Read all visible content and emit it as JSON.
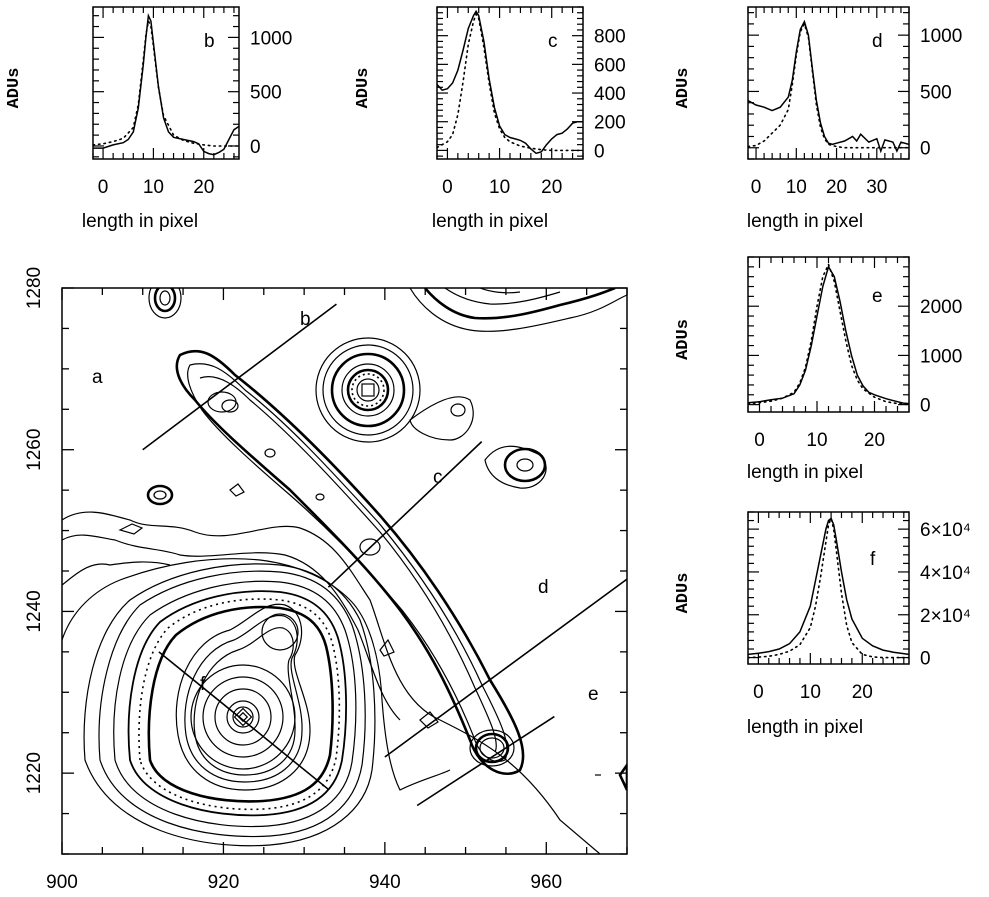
{
  "chart_data": [
    {
      "id": "a",
      "type": "contour",
      "panel_label": "a",
      "xlim": [
        900,
        970
      ],
      "ylim": [
        1210,
        1280
      ],
      "xticks": [
        900,
        920,
        940,
        960
      ],
      "yticks": [
        1220,
        1240,
        1260,
        1280
      ],
      "cuts": [
        {
          "label": "b",
          "from": [
            910,
            1260
          ],
          "to": [
            934,
            1278
          ]
        },
        {
          "label": "c",
          "from": [
            933,
            1243
          ],
          "to": [
            952,
            1261
          ]
        },
        {
          "label": "d",
          "from": [
            940,
            1222
          ],
          "to": [
            970,
            1244
          ]
        },
        {
          "label": "e",
          "from": [
            944,
            1216
          ],
          "to": [
            961,
            1227
          ]
        },
        {
          "label": "f",
          "from": [
            912,
            1235
          ],
          "to": [
            933,
            1218
          ]
        }
      ]
    },
    {
      "id": "b",
      "type": "line",
      "panel_label": "b",
      "xlabel": "length in pixel",
      "ylabel": "ADUs",
      "xlim": [
        -2,
        27
      ],
      "ylim": [
        -120,
        1280
      ],
      "xticks": [
        0,
        10,
        20
      ],
      "yticks": [
        0,
        500,
        1000
      ],
      "series": [
        {
          "style": "solid",
          "x": [
            -2,
            0,
            2,
            4,
            5,
            6,
            7,
            8,
            8.5,
            9,
            9.5,
            10,
            11,
            12,
            13,
            14,
            16,
            18,
            19,
            20,
            21,
            22,
            23,
            24,
            25,
            26,
            27
          ],
          "y": [
            -20,
            -20,
            10,
            30,
            60,
            130,
            350,
            750,
            1000,
            1200,
            1150,
            950,
            550,
            260,
            130,
            80,
            60,
            40,
            20,
            -50,
            -70,
            -80,
            -60,
            -30,
            60,
            150,
            180
          ]
        },
        {
          "style": "dotted",
          "x": [
            -2,
            0,
            2,
            4,
            6,
            7,
            8,
            8.5,
            9,
            9.5,
            10,
            11,
            12,
            14,
            16,
            18,
            20,
            22,
            24,
            26,
            27
          ],
          "y": [
            10,
            20,
            40,
            70,
            170,
            380,
            790,
            1020,
            1150,
            1100,
            920,
            540,
            280,
            100,
            50,
            25,
            10,
            0,
            0,
            0,
            0
          ]
        }
      ]
    },
    {
      "id": "c",
      "type": "line",
      "panel_label": "c",
      "xlabel": "length in pixel",
      "ylabel": "ADUs",
      "xlim": [
        -2,
        26
      ],
      "ylim": [
        -60,
        1000
      ],
      "xticks": [
        0,
        10,
        20
      ],
      "yticks": [
        0,
        200,
        400,
        600,
        800
      ],
      "series": [
        {
          "style": "solid",
          "x": [
            -2,
            -1,
            0,
            1,
            2,
            3,
            4,
            5,
            5.5,
            6,
            7,
            8,
            9,
            10,
            11,
            12,
            13,
            14,
            15,
            16,
            17,
            18,
            19,
            20,
            21,
            22,
            23,
            24,
            25,
            26
          ],
          "y": [
            460,
            420,
            430,
            470,
            560,
            700,
            850,
            940,
            970,
            940,
            760,
            500,
            300,
            170,
            110,
            90,
            80,
            70,
            50,
            10,
            -20,
            -10,
            40,
            80,
            110,
            120,
            150,
            190,
            200,
            200
          ]
        },
        {
          "style": "dotted",
          "x": [
            -2,
            0,
            1,
            2,
            3,
            4,
            5,
            5.5,
            6,
            7,
            8,
            9,
            10,
            11,
            12,
            14,
            16,
            18,
            20,
            22,
            24,
            26
          ],
          "y": [
            20,
            60,
            110,
            250,
            480,
            740,
            900,
            950,
            920,
            720,
            470,
            260,
            150,
            90,
            60,
            30,
            15,
            5,
            0,
            0,
            0,
            0
          ]
        }
      ]
    },
    {
      "id": "d",
      "type": "line",
      "panel_label": "d",
      "xlabel": "length in pixel",
      "ylabel": "ADUs",
      "xlim": [
        -2,
        38
      ],
      "ylim": [
        -100,
        1250
      ],
      "xticks": [
        0,
        10,
        20,
        30
      ],
      "yticks": [
        0,
        500,
        1000
      ],
      "series": [
        {
          "style": "solid",
          "x": [
            -2,
            0,
            2,
            4,
            6,
            8,
            9,
            10,
            11,
            12,
            13,
            14,
            15,
            16,
            17,
            18,
            19,
            20,
            22,
            24,
            25,
            26,
            28,
            30,
            31,
            32,
            34,
            35,
            36,
            38
          ],
          "y": [
            420,
            380,
            360,
            330,
            360,
            450,
            600,
            850,
            1050,
            1120,
            1000,
            700,
            420,
            220,
            100,
            40,
            30,
            40,
            60,
            100,
            60,
            120,
            50,
            80,
            -30,
            70,
            50,
            -30,
            50,
            30
          ]
        },
        {
          "style": "dotted",
          "x": [
            -2,
            0,
            2,
            4,
            6,
            8,
            9,
            10,
            11,
            12,
            13,
            14,
            15,
            16,
            17,
            18,
            20,
            22,
            24,
            26,
            30,
            34,
            38
          ],
          "y": [
            10,
            20,
            60,
            130,
            200,
            340,
            560,
            820,
            1030,
            1100,
            980,
            680,
            380,
            180,
            80,
            30,
            10,
            0,
            0,
            0,
            0,
            0,
            0
          ]
        }
      ]
    },
    {
      "id": "e",
      "type": "line",
      "panel_label": "e",
      "xlabel": "length in pixel",
      "ylabel": "ADUs",
      "xlim": [
        -2,
        26
      ],
      "ylim": [
        -150,
        3000
      ],
      "xticks": [
        0,
        10,
        20
      ],
      "yticks": [
        0,
        1000,
        2000
      ],
      "series": [
        {
          "style": "solid",
          "x": [
            -2,
            0,
            2,
            4,
            6,
            7,
            8,
            9,
            10,
            11,
            12,
            13,
            14,
            15,
            16,
            17,
            18,
            19,
            20,
            22,
            24,
            25,
            26
          ],
          "y": [
            40,
            60,
            100,
            130,
            220,
            400,
            700,
            1200,
            1800,
            2400,
            2800,
            2600,
            2100,
            1500,
            1000,
            600,
            380,
            250,
            200,
            120,
            60,
            30,
            20
          ]
        },
        {
          "style": "dotted",
          "x": [
            -2,
            0,
            2,
            4,
            6,
            7,
            8,
            9,
            10,
            11,
            12,
            13,
            14,
            15,
            16,
            17,
            18,
            20,
            22,
            24,
            26
          ],
          "y": [
            20,
            40,
            70,
            130,
            250,
            440,
            760,
            1300,
            2000,
            2600,
            2850,
            2500,
            1900,
            1300,
            800,
            500,
            320,
            150,
            60,
            20,
            0
          ]
        }
      ]
    },
    {
      "id": "f",
      "type": "line",
      "panel_label": "f",
      "xlabel": "length in pixel",
      "ylabel": "ADUs",
      "xlim": [
        -2,
        29
      ],
      "ylim": [
        -3000,
        68000
      ],
      "xticks": [
        0,
        10,
        20
      ],
      "yticks": [
        0,
        20000,
        40000,
        60000
      ],
      "ytick_labels": [
        "0",
        "2×10⁴",
        "4×10⁴",
        "6×10⁴"
      ],
      "series": [
        {
          "style": "solid",
          "x": [
            -2,
            0,
            2,
            4,
            6,
            8,
            10,
            11,
            12,
            13,
            13.5,
            14,
            14.5,
            15,
            16,
            17,
            18,
            20,
            22,
            24,
            26,
            29
          ],
          "y": [
            1500,
            2000,
            2800,
            4000,
            6500,
            12000,
            24000,
            36000,
            48000,
            60000,
            64000,
            65000,
            62000,
            55000,
            40000,
            27000,
            18000,
            9000,
            5500,
            3500,
            2500,
            1500
          ]
        },
        {
          "style": "dotted",
          "x": [
            -2,
            0,
            2,
            4,
            6,
            8,
            10,
            11,
            12,
            13,
            13.5,
            14,
            14.5,
            15,
            16,
            17,
            18,
            20,
            22,
            24,
            29
          ],
          "y": [
            0,
            200,
            600,
            1500,
            3000,
            6000,
            14000,
            24000,
            38000,
            54000,
            62000,
            65000,
            60000,
            50000,
            30000,
            15000,
            7000,
            1500,
            300,
            0,
            0
          ]
        }
      ]
    }
  ]
}
